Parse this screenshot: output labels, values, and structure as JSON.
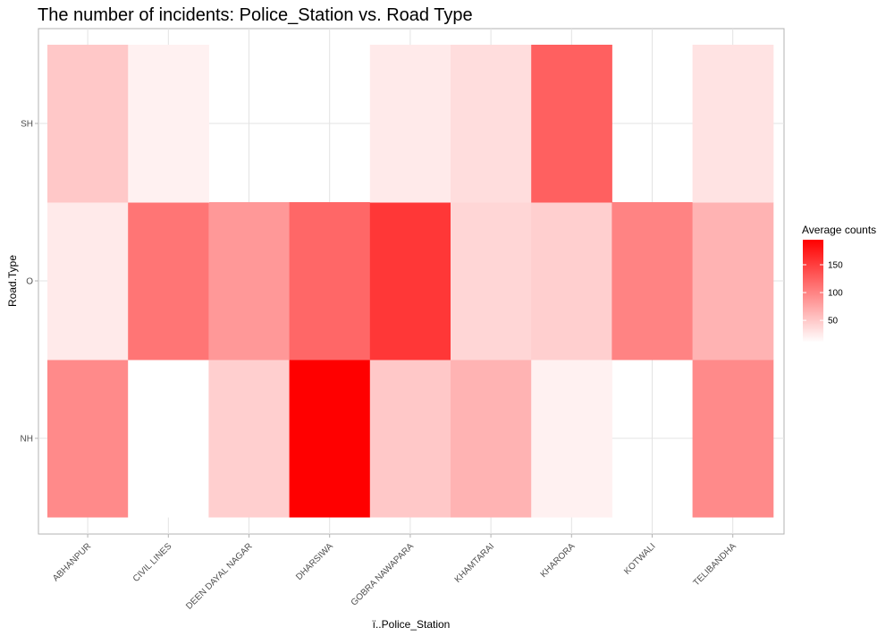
{
  "chart_data": {
    "type": "heatmap",
    "title": "The number of incidents: Police_Station vs. Road Type",
    "xlabel": "ï..Police_Station",
    "ylabel": "Road.Type",
    "x_categories": [
      "ABHANPUR",
      "CIVIL LINES",
      "DEEN DAYAL NAGAR",
      "DHARSIWA",
      "GOBRA NAWAPARA",
      "KHAMTARAI",
      "KHARORA",
      "KOTWALI",
      "TELIBANDHA"
    ],
    "y_categories": [
      "NH",
      "O",
      "SH"
    ],
    "values": [
      [
        95,
        8,
        45,
        195,
        50,
        65,
        20,
        null,
        95
      ],
      [
        25,
        110,
        85,
        120,
        155,
        40,
        45,
        100,
        65
      ],
      [
        50,
        20,
        null,
        null,
        25,
        35,
        125,
        null,
        30
      ]
    ],
    "color_range": [
      10,
      195
    ],
    "colors": {
      "low": "#ffffff",
      "high": "#ff0000"
    },
    "grid": true,
    "legend": {
      "title": "Average counts",
      "ticks": [
        50,
        100,
        150
      ],
      "position": "right"
    }
  }
}
